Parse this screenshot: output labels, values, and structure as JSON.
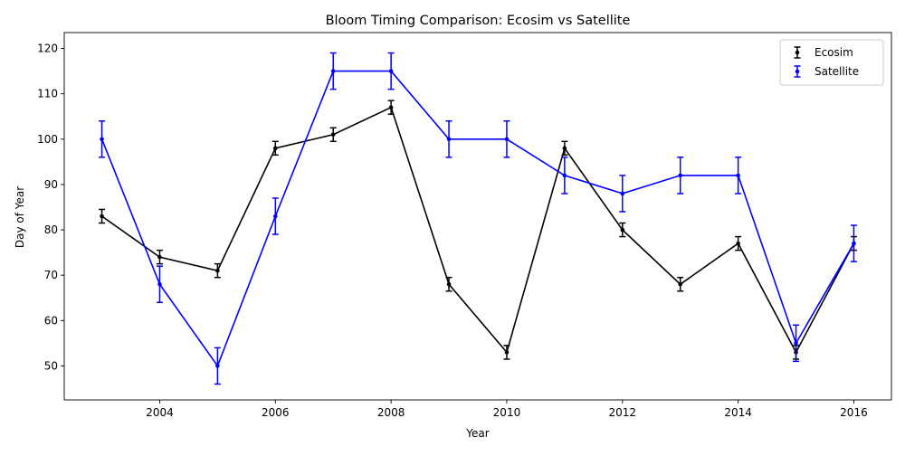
{
  "chart_data": {
    "type": "line",
    "title": "Bloom Timing Comparison: Ecosim vs Satellite",
    "xlabel": "Year",
    "ylabel": "Day of Year",
    "xlim": [
      2002.35,
      2016.65
    ],
    "ylim": [
      42.5,
      123.5
    ],
    "xticks": [
      2004,
      2006,
      2008,
      2010,
      2012,
      2014,
      2016
    ],
    "yticks": [
      50,
      60,
      70,
      80,
      90,
      100,
      110,
      120
    ],
    "grid": false,
    "legend_position": "top-right",
    "error_bars": true,
    "series": [
      {
        "name": "Ecosim",
        "color": "#000000",
        "x": [
          2003,
          2004,
          2005,
          2006,
          2007,
          2008,
          2009,
          2010,
          2011,
          2012,
          2013,
          2014,
          2015,
          2016
        ],
        "y": [
          83,
          74,
          71,
          98,
          101,
          107,
          68,
          53,
          98,
          80,
          68,
          77,
          53,
          77
        ],
        "err": [
          1.5,
          1.5,
          1.5,
          1.5,
          1.5,
          1.5,
          1.5,
          1.5,
          1.5,
          1.5,
          1.5,
          1.5,
          1.5,
          1.5
        ]
      },
      {
        "name": "Satellite",
        "color": "#0000ff",
        "x": [
          2003,
          2004,
          2005,
          2006,
          2007,
          2008,
          2009,
          2010,
          2011,
          2012,
          2013,
          2014,
          2015,
          2016
        ],
        "y": [
          100,
          68,
          50,
          83,
          115,
          115,
          100,
          100,
          92,
          88,
          92,
          92,
          55,
          77
        ],
        "err": [
          4,
          4,
          4,
          4,
          4,
          4,
          4,
          4,
          4,
          4,
          4,
          4,
          4,
          4
        ]
      }
    ]
  }
}
